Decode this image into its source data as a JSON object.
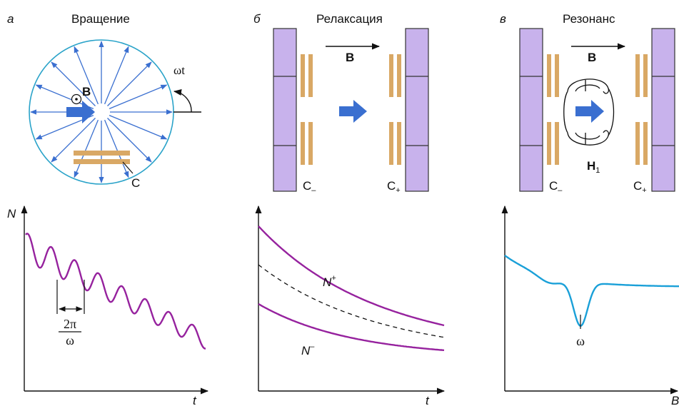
{
  "colors": {
    "circle": "#2aa3c9",
    "arrow": "#3a6fd0",
    "plate": "#d9a865",
    "magnet": "#c8b2ec",
    "magnet_edge": "#333333",
    "curve": "#96229e",
    "resonance_curve": "#1aa0d8",
    "axis": "#111111"
  },
  "panel_a": {
    "letter": "а",
    "title": "Вращение",
    "field_label": "B",
    "rotation_label": "ωt",
    "plates_label": "C",
    "graph": {
      "y_axis_label": "N",
      "x_axis_label": "t",
      "period_numerator": "2π",
      "period_denominator": "ω"
    }
  },
  "panel_b": {
    "letter": "б",
    "title": "Релаксация",
    "field_label": "B",
    "left_plates_label": "C",
    "left_plates_sub": "–",
    "right_plates_label": "C",
    "right_plates_sub": "+",
    "graph": {
      "x_axis_label": "t",
      "upper_curve_label": "N",
      "upper_curve_sup": "+",
      "lower_curve_label": "N",
      "lower_curve_sup": "–"
    }
  },
  "panel_c": {
    "letter": "в",
    "title": "Резонанс",
    "field_label": "B",
    "rf_field_label": "H",
    "rf_field_sub": "1",
    "left_plates_label": "C",
    "left_plates_sub": "–",
    "right_plates_label": "C",
    "right_plates_sub": "+",
    "graph": {
      "x_axis_label": "B",
      "dip_label": "ω"
    }
  }
}
